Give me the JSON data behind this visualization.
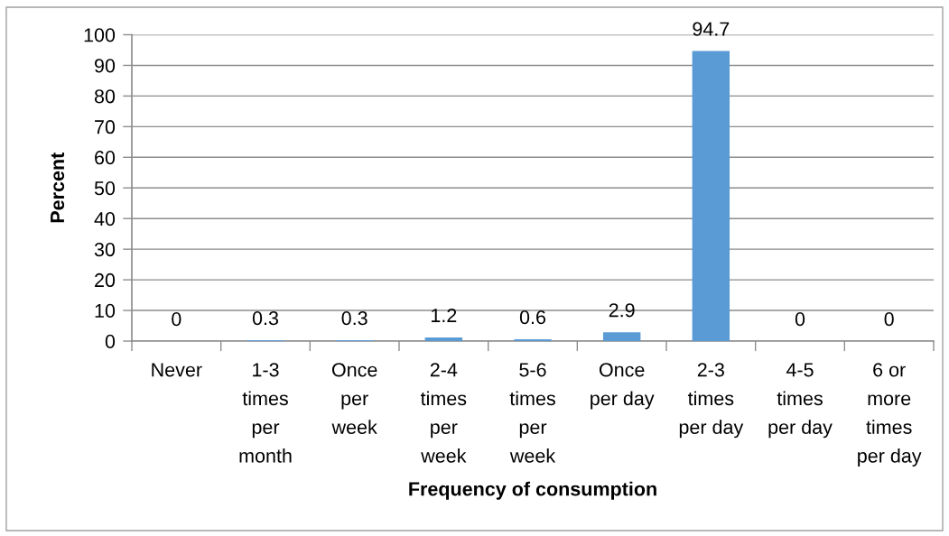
{
  "chart_data": {
    "type": "bar",
    "xlabel": "Frequency of consumption",
    "ylabel": "Percent",
    "categories": [
      "Never",
      "1-3\ntimes\nper\nmonth",
      "Once\nper\nweek",
      "2-4\ntimes\nper\nweek",
      "5-6\ntimes\nper\nweek",
      "Once\nper day",
      "2-3\ntimes\nper day",
      "4-5\ntimes\nper day",
      "6 or\nmore\ntimes\nper day"
    ],
    "values": [
      0,
      0.3,
      0.3,
      1.2,
      0.6,
      2.9,
      94.7,
      0,
      0
    ],
    "color": "#5b9bd5",
    "ylim": [
      0,
      100
    ],
    "yticks": [
      0,
      10,
      20,
      30,
      40,
      50,
      60,
      70,
      80,
      90,
      100
    ],
    "grid": "y",
    "data_labels": true
  }
}
